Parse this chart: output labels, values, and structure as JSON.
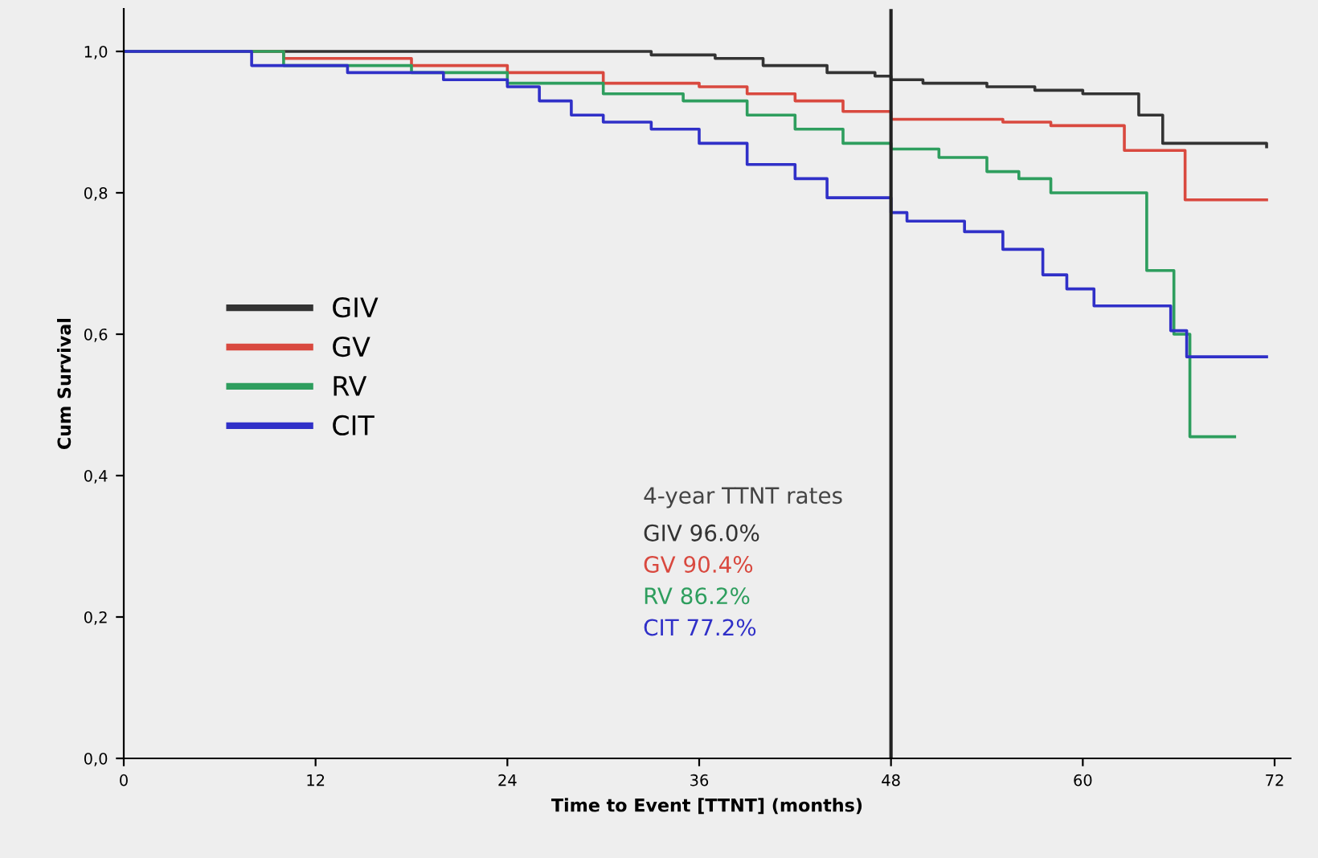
{
  "chart_data": {
    "type": "step",
    "xlabel": "Time to Event [TTNT] (months)",
    "ylabel": "Cum Survival",
    "series": [
      {
        "name": "GIV",
        "color": "#333333",
        "x": [
          0,
          30,
          33,
          37,
          40,
          44,
          47,
          48,
          50,
          54,
          57,
          60,
          63.5,
          65,
          71.5
        ],
        "values": [
          1.0,
          1.0,
          0.995,
          0.99,
          0.98,
          0.97,
          0.965,
          0.96,
          0.955,
          0.95,
          0.945,
          0.94,
          0.91,
          0.87,
          0.865
        ]
      },
      {
        "name": "GV",
        "color": "#d9493f",
        "x": [
          0,
          10,
          18,
          24,
          30,
          36,
          39,
          42,
          45,
          48,
          55,
          58,
          62.6,
          66.4,
          71.5
        ],
        "values": [
          1.0,
          0.99,
          0.98,
          0.97,
          0.955,
          0.95,
          0.94,
          0.93,
          0.915,
          0.904,
          0.9,
          0.895,
          0.86,
          0.79,
          0.79
        ]
      },
      {
        "name": "RV",
        "color": "#2e9e5e",
        "x": [
          0,
          10,
          18,
          24,
          30,
          35,
          39,
          42,
          45,
          48,
          51,
          54,
          56,
          58,
          64,
          65.7,
          66.7,
          69.5
        ],
        "values": [
          1.0,
          0.98,
          0.97,
          0.955,
          0.94,
          0.93,
          0.91,
          0.89,
          0.87,
          0.862,
          0.85,
          0.83,
          0.82,
          0.8,
          0.69,
          0.6,
          0.455,
          0.455
        ]
      },
      {
        "name": "CIT",
        "color": "#3030c8",
        "x": [
          0,
          8,
          14,
          20,
          24,
          26,
          28,
          30,
          33,
          36,
          39,
          42,
          44,
          48,
          49,
          52.6,
          55,
          57.5,
          59,
          60.7,
          65.5,
          66.5,
          71.5
        ],
        "values": [
          1.0,
          0.98,
          0.97,
          0.96,
          0.95,
          0.93,
          0.91,
          0.9,
          0.89,
          0.87,
          0.84,
          0.82,
          0.793,
          0.772,
          0.76,
          0.745,
          0.72,
          0.684,
          0.664,
          0.64,
          0.605,
          0.568,
          0.568
        ]
      }
    ],
    "xlim": [
      0,
      73
    ],
    "xticks": [
      0,
      12,
      24,
      36,
      48,
      60,
      72
    ],
    "ylim": [
      0,
      1.06
    ],
    "yticks": [
      {
        "value": 0,
        "label": "0,0"
      },
      {
        "value": 0.2,
        "label": "0,2"
      },
      {
        "value": 0.4,
        "label": "0,4"
      },
      {
        "value": 0.6,
        "label": "0,6"
      },
      {
        "value": 0.8,
        "label": "0,8"
      },
      {
        "value": 1.0,
        "label": "1,0"
      }
    ],
    "ref_lines": [
      {
        "axis": "x",
        "value": 48,
        "color": "#222222"
      }
    ],
    "legend": "center left",
    "grid": false,
    "annotations": [
      "4-year TTNT rates",
      "GIV 96.0%",
      "GV 90.4%",
      "RV 86.2%",
      "CIT 77.2%"
    ]
  }
}
